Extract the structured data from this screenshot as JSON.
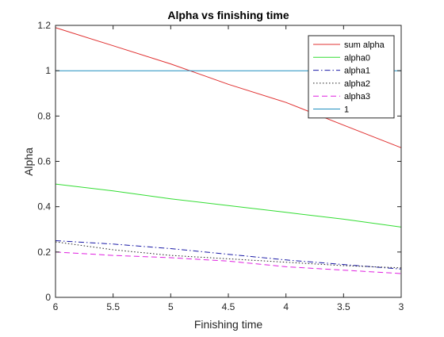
{
  "chart_data": {
    "type": "line",
    "title": "Alpha vs finishing time",
    "xlabel": "Finishing time",
    "ylabel": "Alpha",
    "xlim": [
      6,
      3
    ],
    "x_reversed": true,
    "ylim": [
      0,
      1.2
    ],
    "x_ticks": [
      6,
      5.5,
      5,
      4.5,
      4,
      3.5,
      3
    ],
    "x_tick_labels": [
      "6",
      "5.5",
      "5",
      "4.5",
      "4",
      "3.5",
      "3"
    ],
    "y_ticks": [
      0,
      0.2,
      0.4,
      0.6,
      0.8,
      1,
      1.2
    ],
    "y_tick_labels": [
      "0",
      "0.2",
      "0.4",
      "0.6",
      "0.8",
      "1",
      "1.2"
    ],
    "grid": false,
    "legend_position": "top-right",
    "series": [
      {
        "name": "sum alpha",
        "color": "#e03030",
        "dash": "solid",
        "points": [
          [
            6,
            1.19
          ],
          [
            5.5,
            1.11
          ],
          [
            5,
            1.03
          ],
          [
            4.5,
            0.94
          ],
          [
            4,
            0.86
          ],
          [
            3.5,
            0.76
          ],
          [
            3,
            0.66
          ]
        ]
      },
      {
        "name": "alpha0",
        "color": "#33dd33",
        "dash": "solid",
        "points": [
          [
            6,
            0.5
          ],
          [
            5.5,
            0.47
          ],
          [
            5,
            0.435
          ],
          [
            4.5,
            0.405
          ],
          [
            4,
            0.375
          ],
          [
            3.5,
            0.345
          ],
          [
            3,
            0.31
          ]
        ]
      },
      {
        "name": "alpha1",
        "color": "#1a1aa6",
        "dash": "dashdot",
        "points": [
          [
            6,
            0.25
          ],
          [
            5.5,
            0.235
          ],
          [
            5,
            0.215
          ],
          [
            4.5,
            0.19
          ],
          [
            4,
            0.165
          ],
          [
            3.5,
            0.145
          ],
          [
            3,
            0.125
          ]
        ]
      },
      {
        "name": "alpha2",
        "color": "#222222",
        "dash": "dotted",
        "points": [
          [
            6,
            0.245
          ],
          [
            5.5,
            0.21
          ],
          [
            5,
            0.185
          ],
          [
            4.5,
            0.17
          ],
          [
            4,
            0.155
          ],
          [
            3.5,
            0.14
          ],
          [
            3,
            0.13
          ]
        ]
      },
      {
        "name": "alpha3",
        "color": "#e020e0",
        "dash": "dashed",
        "points": [
          [
            6,
            0.2
          ],
          [
            5.5,
            0.185
          ],
          [
            5,
            0.175
          ],
          [
            4.5,
            0.16
          ],
          [
            4,
            0.135
          ],
          [
            3.5,
            0.12
          ],
          [
            3,
            0.105
          ]
        ]
      },
      {
        "name": "1",
        "color": "#1f8fbf",
        "dash": "solid",
        "points": [
          [
            6,
            1.0
          ],
          [
            3,
            1.0
          ]
        ]
      }
    ]
  }
}
